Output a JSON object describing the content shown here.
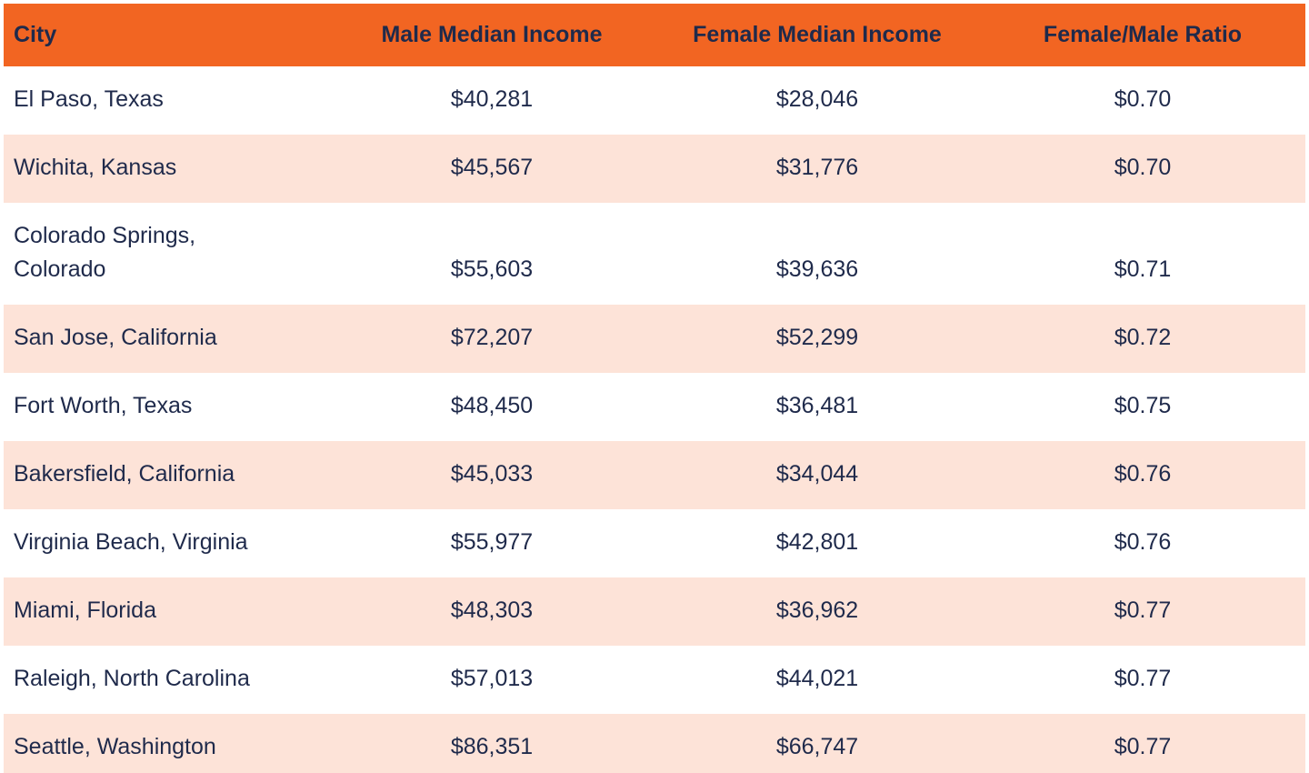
{
  "colors": {
    "header_bg": "#F26522",
    "stripe_bg": "#FDE3D8",
    "row_bg": "#FFFFFF",
    "text": "#1F2A4B"
  },
  "chart_data": {
    "type": "table",
    "title": "",
    "columns": [
      "City",
      "Male Median Income",
      "Female Median Income",
      "Female/Male Ratio"
    ],
    "rows": [
      [
        "El Paso, Texas",
        "$40,281",
        "$28,046",
        "$0.70"
      ],
      [
        "Wichita, Kansas",
        "$45,567",
        "$31,776",
        "$0.70"
      ],
      [
        "Colorado Springs,\nColorado",
        "$55,603",
        "$39,636",
        "$0.71"
      ],
      [
        "San Jose, California",
        "$72,207",
        "$52,299",
        "$0.72"
      ],
      [
        "Fort Worth, Texas",
        "$48,450",
        "$36,481",
        "$0.75"
      ],
      [
        "Bakersfield, California",
        "$45,033",
        "$34,044",
        "$0.76"
      ],
      [
        "Virginia Beach, Virginia",
        "$55,977",
        "$42,801",
        "$0.76"
      ],
      [
        "Miami, Florida",
        "$48,303",
        "$36,962",
        "$0.77"
      ],
      [
        "Raleigh, North Carolina",
        "$57,013",
        "$44,021",
        "$0.77"
      ],
      [
        "Seattle, Washington",
        "$86,351",
        "$66,747",
        "$0.77"
      ]
    ],
    "layout": {
      "header_alignment": [
        "left",
        "center",
        "center",
        "center"
      ],
      "stripe_pattern": "even rows shaded peach",
      "grid": "off"
    }
  }
}
